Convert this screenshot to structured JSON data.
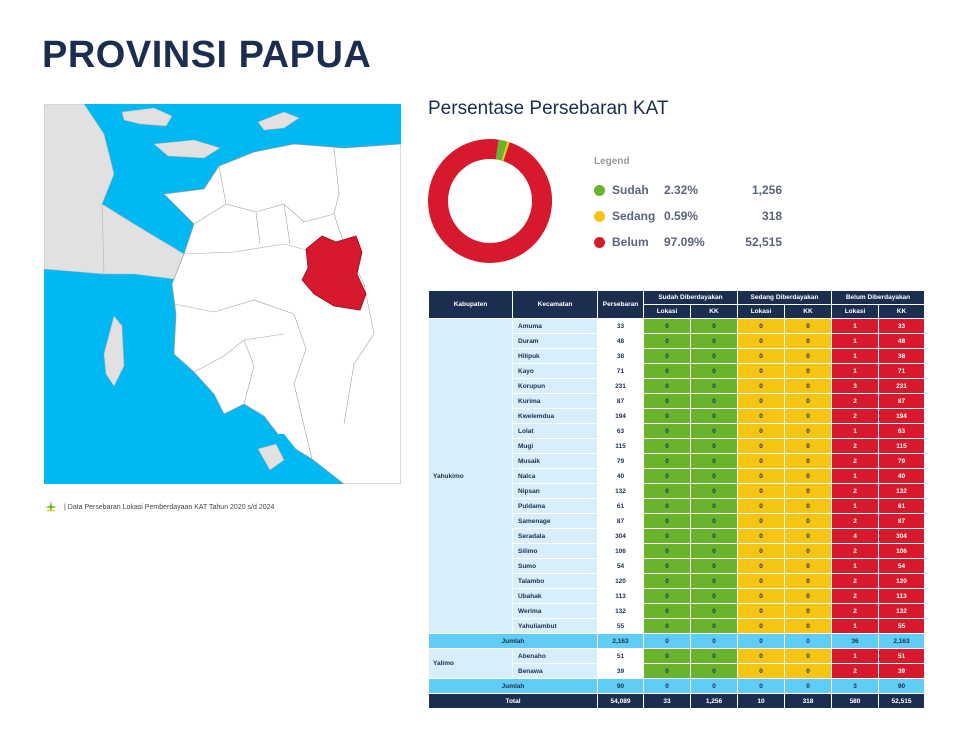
{
  "title": "PROVINSI PAPUA",
  "source_note": "| Data Persebaran Lokasi Pemberdayaan KAT Tahun 2020 s/d 2024",
  "colors": {
    "sudah": "#6ab42d",
    "sedang": "#f6c413",
    "belum": "#d7192d",
    "navy": "#1c2e50",
    "sea": "#00b9f2",
    "highlight": "#d7192d"
  },
  "chart_data": {
    "type": "pie",
    "title": "Persentase Persebaran KAT",
    "legend_title": "Legend",
    "series": [
      {
        "name": "Sudah",
        "percent": 2.32,
        "percent_label": "2.32%",
        "value": 1256,
        "value_label": "1,256"
      },
      {
        "name": "Sedang",
        "percent": 0.59,
        "percent_label": "0.59%",
        "value": 318,
        "value_label": "318"
      },
      {
        "name": "Belum",
        "percent": 97.09,
        "percent_label": "97.09%",
        "value": 52515,
        "value_label": "52,515"
      }
    ]
  },
  "table": {
    "headers": {
      "kabupaten": "Kabupaten",
      "kecamatan": "Kecamatan",
      "persebaran": "Persebaran",
      "sudah": "Sudah Diberdayakan",
      "sedang": "Sedang Diberdayakan",
      "belum": "Belum Diberdayakan",
      "lokasi": "Lokasi",
      "kk": "KK"
    },
    "groups": [
      {
        "kabupaten": "Yahukimo",
        "rows": [
          [
            "Amuma",
            "33",
            "0",
            "0",
            "0",
            "0",
            "1",
            "33"
          ],
          [
            "Duram",
            "48",
            "0",
            "0",
            "0",
            "0",
            "1",
            "48"
          ],
          [
            "Hilipuk",
            "38",
            "0",
            "0",
            "0",
            "0",
            "1",
            "38"
          ],
          [
            "Kayo",
            "71",
            "0",
            "0",
            "0",
            "0",
            "1",
            "71"
          ],
          [
            "Korupun",
            "231",
            "0",
            "0",
            "0",
            "0",
            "3",
            "231"
          ],
          [
            "Kurima",
            "87",
            "0",
            "0",
            "0",
            "0",
            "2",
            "87"
          ],
          [
            "Kwelemdua",
            "194",
            "0",
            "0",
            "0",
            "0",
            "2",
            "194"
          ],
          [
            "Lolat",
            "63",
            "0",
            "0",
            "0",
            "0",
            "1",
            "63"
          ],
          [
            "Mugi",
            "115",
            "0",
            "0",
            "0",
            "0",
            "2",
            "115"
          ],
          [
            "Musaik",
            "79",
            "0",
            "0",
            "0",
            "0",
            "2",
            "79"
          ],
          [
            "Nalca",
            "40",
            "0",
            "0",
            "0",
            "0",
            "1",
            "40"
          ],
          [
            "Nipsan",
            "132",
            "0",
            "0",
            "0",
            "0",
            "2",
            "132"
          ],
          [
            "Puldama",
            "61",
            "0",
            "0",
            "0",
            "0",
            "1",
            "61"
          ],
          [
            "Samenage",
            "87",
            "0",
            "0",
            "0",
            "0",
            "2",
            "87"
          ],
          [
            "Seradala",
            "304",
            "0",
            "0",
            "0",
            "0",
            "4",
            "304"
          ],
          [
            "Silimo",
            "106",
            "0",
            "0",
            "0",
            "0",
            "2",
            "106"
          ],
          [
            "Sumo",
            "54",
            "0",
            "0",
            "0",
            "0",
            "1",
            "54"
          ],
          [
            "Talambo",
            "120",
            "0",
            "0",
            "0",
            "0",
            "2",
            "120"
          ],
          [
            "Ubahak",
            "113",
            "0",
            "0",
            "0",
            "0",
            "2",
            "113"
          ],
          [
            "Werima",
            "132",
            "0",
            "0",
            "0",
            "0",
            "2",
            "132"
          ],
          [
            "Yahuliambut",
            "55",
            "0",
            "0",
            "0",
            "0",
            "1",
            "55"
          ]
        ],
        "jumlah": [
          "Jumlah",
          "2,163",
          "0",
          "0",
          "0",
          "0",
          "36",
          "2,163"
        ]
      },
      {
        "kabupaten": "Yalimo",
        "rows": [
          [
            "Abenaho",
            "51",
            "0",
            "0",
            "0",
            "0",
            "1",
            "51"
          ],
          [
            "Benawa",
            "39",
            "0",
            "0",
            "0",
            "0",
            "2",
            "39"
          ]
        ],
        "jumlah": [
          "Jumlah",
          "90",
          "0",
          "0",
          "0",
          "0",
          "3",
          "90"
        ]
      }
    ],
    "total": [
      "Total",
      "54,089",
      "33",
      "1,256",
      "10",
      "318",
      "580",
      "52,515"
    ]
  }
}
